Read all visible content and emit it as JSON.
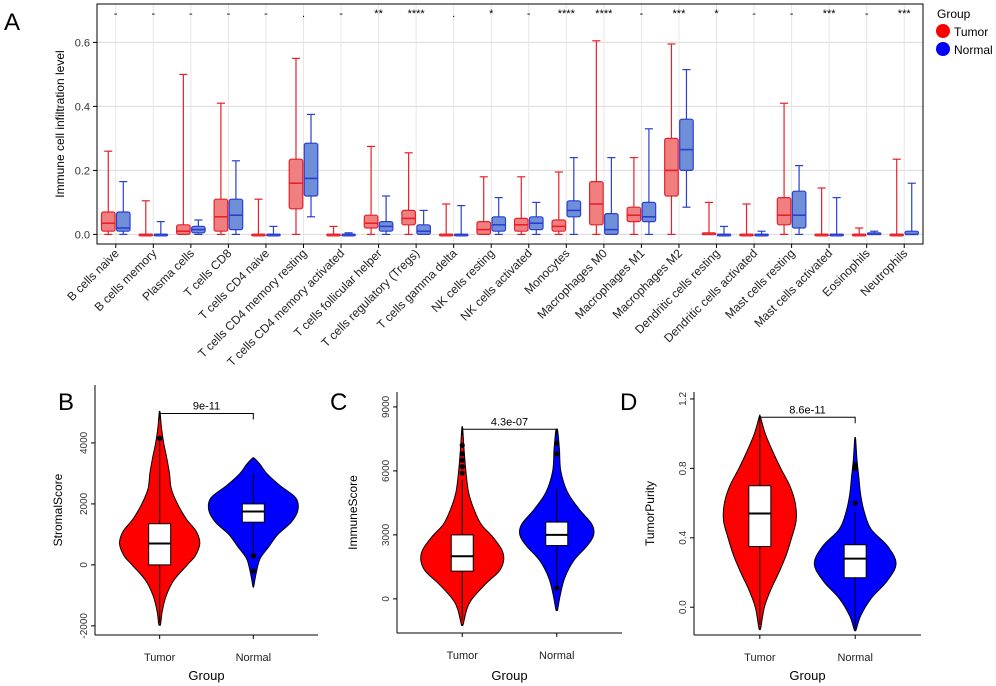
{
  "colors": {
    "tumor": "#ff0000",
    "normal": "#0000ff",
    "tumor_box": "#f08080",
    "normal_box": "#6f8fd9",
    "tumor_line": "#e8202a",
    "normal_line": "#2a3fd0"
  },
  "legend": {
    "title": "Group",
    "items": [
      "Tumor",
      "Normal"
    ]
  },
  "chart_data": [
    {
      "panel": "A",
      "type": "box",
      "ylabel": "Immune cell infiltration level",
      "ylim": [
        -0.03,
        0.72
      ],
      "yticks": [
        "0.0",
        "0.2",
        "0.4",
        "0.6"
      ],
      "ytick_values": [
        0.0,
        0.2,
        0.4,
        0.6
      ],
      "grid": true,
      "categories": [
        "B cells naive",
        "B cells memory",
        "Plasma cells",
        "T cells CD8",
        "T cells CD4 naive",
        "T cells CD4 memory resting",
        "T cells CD4 memory activated",
        "T cells follicular helper",
        "T cells regulatory (Tregs)",
        "T cells gamma delta",
        "NK cells resting",
        "NK cells activated",
        "Monocytes",
        "Macrophages M0",
        "Macrophages M1",
        "Macrophages M2",
        "Dendritic cells resting",
        "Dendritic cells activated",
        "Mast cells resting",
        "Mast cells activated",
        "Eosinophils",
        "Neutrophils"
      ],
      "significance": [
        "-",
        "-",
        "-",
        "-",
        "-",
        ".",
        "-",
        "**",
        "****",
        ".",
        "*",
        "-",
        "****",
        "****",
        "-",
        "***",
        "*",
        "-",
        "-",
        "***",
        "-",
        "***"
      ],
      "series": [
        {
          "name": "Tumor",
          "boxes": [
            [
              0,
              0.01,
              0.035,
              0.07,
              0.26
            ],
            [
              0,
              0,
              0,
              0,
              0.105
            ],
            [
              0,
              0,
              0.01,
              0.03,
              0.5
            ],
            [
              0,
              0.01,
              0.055,
              0.11,
              0.41
            ],
            [
              0,
              0,
              0,
              0,
              0.11
            ],
            [
              0,
              0.08,
              0.16,
              0.235,
              0.55
            ],
            [
              0,
              0,
              0,
              0,
              0.025
            ],
            [
              0,
              0.02,
              0.035,
              0.06,
              0.275
            ],
            [
              0,
              0.03,
              0.05,
              0.075,
              0.255
            ],
            [
              0,
              0,
              0,
              0,
              0.095
            ],
            [
              0,
              0,
              0.015,
              0.04,
              0.18
            ],
            [
              0,
              0.01,
              0.03,
              0.05,
              0.18
            ],
            [
              0,
              0.01,
              0.025,
              0.045,
              0.195
            ],
            [
              0,
              0.03,
              0.095,
              0.165,
              0.605
            ],
            [
              0,
              0.04,
              0.06,
              0.085,
              0.24
            ],
            [
              0,
              0.12,
              0.2,
              0.3,
              0.595
            ],
            [
              0,
              0,
              0,
              0.005,
              0.1
            ],
            [
              0,
              0,
              0,
              0,
              0.095
            ],
            [
              0,
              0.03,
              0.06,
              0.115,
              0.41
            ],
            [
              0,
              0,
              0,
              0,
              0.145
            ],
            [
              0,
              0,
              0,
              0,
              0.02
            ],
            [
              0,
              0,
              0,
              0,
              0.235
            ]
          ]
        },
        {
          "name": "Normal",
          "boxes": [
            [
              0,
              0.01,
              0.02,
              0.07,
              0.165
            ],
            [
              0,
              0,
              0,
              0,
              0.04
            ],
            [
              0,
              0.005,
              0.015,
              0.025,
              0.045
            ],
            [
              0,
              0.015,
              0.06,
              0.11,
              0.23
            ],
            [
              0,
              0,
              0,
              0,
              0.025
            ],
            [
              0.055,
              0.12,
              0.175,
              0.285,
              0.375
            ],
            [
              0,
              0,
              0,
              0,
              0.005
            ],
            [
              0,
              0.01,
              0.025,
              0.04,
              0.12
            ],
            [
              0,
              0,
              0.01,
              0.03,
              0.075
            ],
            [
              0,
              0,
              0,
              0,
              0.09
            ],
            [
              0,
              0.01,
              0.03,
              0.055,
              0.115
            ],
            [
              0,
              0.015,
              0.035,
              0.055,
              0.1
            ],
            [
              0,
              0.055,
              0.075,
              0.105,
              0.24
            ],
            [
              0,
              0,
              0.015,
              0.065,
              0.24
            ],
            [
              0,
              0.04,
              0.055,
              0.1,
              0.33
            ],
            [
              0.085,
              0.2,
              0.265,
              0.36,
              0.515
            ],
            [
              0,
              0,
              0,
              0,
              0.025
            ],
            [
              0,
              0,
              0,
              0,
              0.01
            ],
            [
              0,
              0.02,
              0.06,
              0.135,
              0.215
            ],
            [
              0,
              0,
              0,
              0,
              0.115
            ],
            [
              0,
              0,
              0,
              0.005,
              0.01
            ],
            [
              0,
              0,
              0,
              0.01,
              0.16
            ]
          ]
        }
      ]
    },
    {
      "panel": "B",
      "type": "violin",
      "title_label": "9e-11",
      "xlabel": "Group",
      "ylabel": "StromalScore",
      "categories": [
        "Tumor",
        "Normal"
      ],
      "ylim": [
        -2300,
        5900
      ],
      "yticks": [
        "-2000",
        "0",
        "2000",
        "4000"
      ],
      "ytick_values": [
        -2000,
        0,
        2000,
        4000
      ],
      "series": [
        {
          "name": "Tumor",
          "min": -1950,
          "max": 5000,
          "box": [
            0,
            700,
            1350
          ],
          "whiskers": [
            -1900,
            4100
          ],
          "outliers": [
            4150
          ],
          "density": [
            [
              -1950,
              0.02
            ],
            [
              -1500,
              0.06
            ],
            [
              -1000,
              0.15
            ],
            [
              -500,
              0.32
            ],
            [
              0,
              0.62
            ],
            [
              300,
              0.8
            ],
            [
              700,
              0.9
            ],
            [
              1100,
              0.82
            ],
            [
              1500,
              0.6
            ],
            [
              2000,
              0.4
            ],
            [
              2500,
              0.26
            ],
            [
              3000,
              0.22
            ],
            [
              3500,
              0.16
            ],
            [
              4000,
              0.09
            ],
            [
              4500,
              0.04
            ],
            [
              5000,
              0.01
            ]
          ]
        },
        {
          "name": "Normal",
          "min": -700,
          "max": 3500,
          "box": [
            1400,
            1750,
            2000
          ],
          "whiskers": [
            200,
            3000
          ],
          "outliers": [
            -200,
            300
          ],
          "density": [
            [
              -700,
              0.01
            ],
            [
              -300,
              0.06
            ],
            [
              200,
              0.15
            ],
            [
              600,
              0.35
            ],
            [
              1000,
              0.55
            ],
            [
              1400,
              0.85
            ],
            [
              1800,
              1.0
            ],
            [
              2200,
              0.95
            ],
            [
              2600,
              0.6
            ],
            [
              3000,
              0.3
            ],
            [
              3300,
              0.15
            ],
            [
              3500,
              0.02
            ]
          ]
        }
      ]
    },
    {
      "panel": "C",
      "type": "violin",
      "title_label": "4.3e-07",
      "xlabel": "Group",
      "ylabel": "ImmuneScore",
      "categories": [
        "Tumor",
        "Normal"
      ],
      "ylim": [
        -1600,
        9700
      ],
      "yticks": [
        "0",
        "3000",
        "6000",
        "9000"
      ],
      "ytick_values": [
        0,
        3000,
        6000,
        9000
      ],
      "series": [
        {
          "name": "Tumor",
          "min": -1200,
          "max": 8000,
          "box": [
            1300,
            2000,
            3000
          ],
          "whiskers": [
            -1000,
            5600
          ],
          "outliers": [
            5900,
            6200,
            6500,
            6800,
            7200
          ],
          "density": [
            [
              -1200,
              0.02
            ],
            [
              -500,
              0.1
            ],
            [
              0,
              0.22
            ],
            [
              700,
              0.52
            ],
            [
              1300,
              0.82
            ],
            [
              1800,
              0.92
            ],
            [
              2300,
              0.88
            ],
            [
              2900,
              0.68
            ],
            [
              3500,
              0.42
            ],
            [
              4200,
              0.26
            ],
            [
              5000,
              0.14
            ],
            [
              6000,
              0.08
            ],
            [
              7000,
              0.04
            ],
            [
              8000,
              0.01
            ]
          ]
        },
        {
          "name": "Normal",
          "min": -500,
          "max": 7900,
          "box": [
            2500,
            3000,
            3600
          ],
          "whiskers": [
            400,
            5200
          ],
          "outliers": [
            500,
            6800,
            7300
          ],
          "density": [
            [
              -500,
              0.02
            ],
            [
              200,
              0.08
            ],
            [
              1000,
              0.18
            ],
            [
              1800,
              0.38
            ],
            [
              2500,
              0.68
            ],
            [
              3000,
              0.82
            ],
            [
              3500,
              0.78
            ],
            [
              4200,
              0.5
            ],
            [
              5000,
              0.24
            ],
            [
              6000,
              0.09
            ],
            [
              7000,
              0.06
            ],
            [
              7900,
              0.02
            ]
          ]
        }
      ]
    },
    {
      "panel": "D",
      "type": "violin",
      "title_label": "8.6e-11",
      "xlabel": "Group",
      "ylabel": "TumorPurity",
      "categories": [
        "Tumor",
        "Normal"
      ],
      "ylim": [
        -0.16,
        1.24
      ],
      "yticks": [
        "0.0",
        "0.4",
        "0.8",
        "1.2"
      ],
      "ytick_values": [
        0.0,
        0.4,
        0.8,
        1.2
      ],
      "series": [
        {
          "name": "Tumor",
          "min": -0.12,
          "max": 1.1,
          "box": [
            0.35,
            0.54,
            0.7
          ],
          "whiskers": [
            -0.1,
            1.06
          ],
          "outliers": [],
          "density": [
            [
              -0.12,
              0.02
            ],
            [
              0,
              0.1
            ],
            [
              0.1,
              0.24
            ],
            [
              0.2,
              0.42
            ],
            [
              0.3,
              0.58
            ],
            [
              0.4,
              0.7
            ],
            [
              0.5,
              0.8
            ],
            [
              0.6,
              0.78
            ],
            [
              0.7,
              0.66
            ],
            [
              0.8,
              0.46
            ],
            [
              0.9,
              0.28
            ],
            [
              1.0,
              0.12
            ],
            [
              1.1,
              0.01
            ]
          ]
        },
        {
          "name": "Normal",
          "min": -0.13,
          "max": 0.97,
          "box": [
            0.17,
            0.28,
            0.36
          ],
          "whiskers": [
            -0.12,
            0.55
          ],
          "outliers": [
            0.6,
            0.8,
            0.82
          ],
          "density": [
            [
              -0.13,
              0.02
            ],
            [
              -0.05,
              0.12
            ],
            [
              0.05,
              0.35
            ],
            [
              0.15,
              0.7
            ],
            [
              0.25,
              0.9
            ],
            [
              0.35,
              0.72
            ],
            [
              0.45,
              0.35
            ],
            [
              0.55,
              0.2
            ],
            [
              0.65,
              0.12
            ],
            [
              0.75,
              0.08
            ],
            [
              0.85,
              0.04
            ],
            [
              0.97,
              0.01
            ]
          ]
        }
      ]
    }
  ]
}
